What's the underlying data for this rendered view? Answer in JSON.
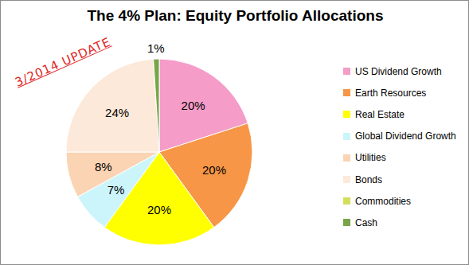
{
  "chart_data": {
    "type": "pie",
    "title": "The 4% Plan: Equity Portfolio Allocations",
    "annotations": [
      "3/2014 UPDATE"
    ],
    "categories": [
      "US Dividend Growth",
      "Earth Resources",
      "Real Estate",
      "Global Dividend Growth",
      "Utilities",
      "Bonds",
      "Commodities",
      "Cash"
    ],
    "values": [
      20,
      20,
      20,
      7,
      8,
      24,
      0,
      1
    ],
    "value_labels": [
      "20%",
      "20%",
      "20%",
      "7%",
      "8%",
      "24%",
      null,
      "1%"
    ],
    "colors": [
      "#f59cc8",
      "#f79646",
      "#ffff00",
      "#ccf5fb",
      "#fbd4b4",
      "#fde9d9",
      "#d4e05a",
      "#77a548"
    ],
    "data_labels": true,
    "legend": "right"
  }
}
